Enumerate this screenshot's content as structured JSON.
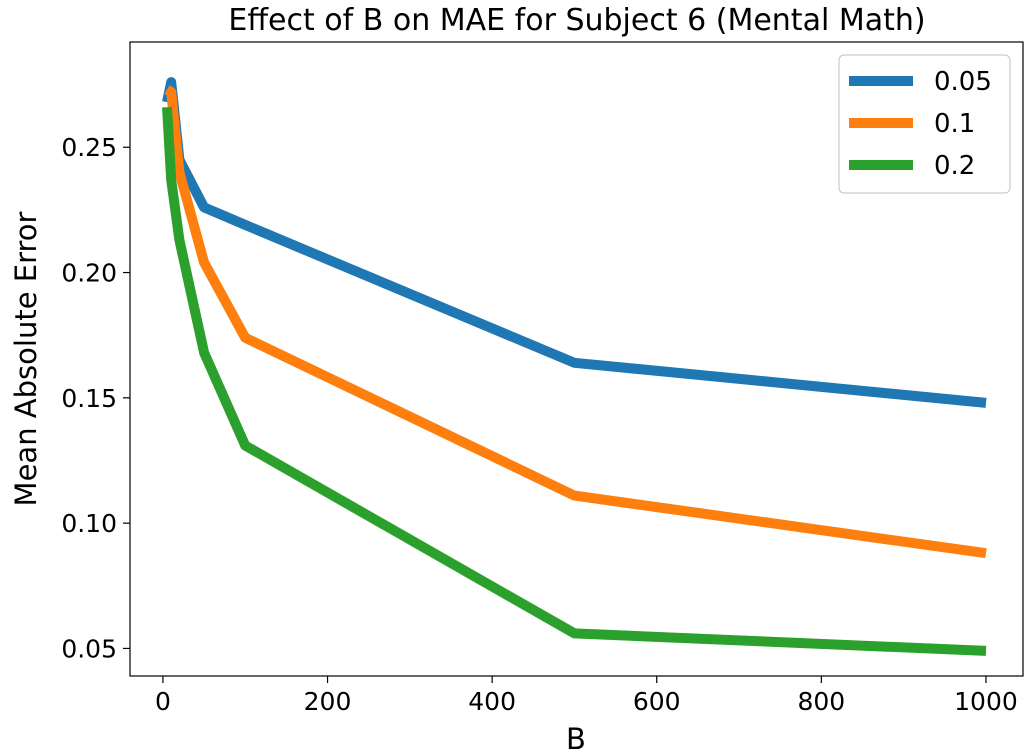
{
  "chart_data": {
    "type": "line",
    "title": "Effect of B on MAE for Subject 6 (Mental Math)",
    "xlabel": "B",
    "ylabel": "Mean Absolute Error",
    "xlim": [
      -40,
      1045
    ],
    "ylim": [
      0.039,
      0.292
    ],
    "xticks": [
      0,
      200,
      400,
      600,
      800,
      1000
    ],
    "xtick_labels": [
      "0",
      "200",
      "400",
      "600",
      "800",
      "1000"
    ],
    "yticks": [
      0.05,
      0.1,
      0.15,
      0.2,
      0.25
    ],
    "ytick_labels": [
      "0.05",
      "0.10",
      "0.15",
      "0.20",
      "0.25"
    ],
    "grid": false,
    "legend_position": "top-right",
    "series": [
      {
        "name": "0.05",
        "color": "#1f77b4",
        "x": [
          5,
          10,
          20,
          50,
          100,
          500,
          1000
        ],
        "y": [
          0.268,
          0.276,
          0.245,
          0.226,
          0.219,
          0.164,
          0.148
        ]
      },
      {
        "name": "0.1",
        "color": "#ff7f0e",
        "x": [
          5,
          10,
          20,
          50,
          100,
          500,
          1000
        ],
        "y": [
          0.273,
          0.272,
          0.24,
          0.204,
          0.174,
          0.111,
          0.088
        ]
      },
      {
        "name": "0.2",
        "color": "#2ca02c",
        "x": [
          5,
          10,
          20,
          50,
          100,
          500,
          1000
        ],
        "y": [
          0.266,
          0.237,
          0.213,
          0.168,
          0.131,
          0.056,
          0.049
        ]
      }
    ]
  }
}
